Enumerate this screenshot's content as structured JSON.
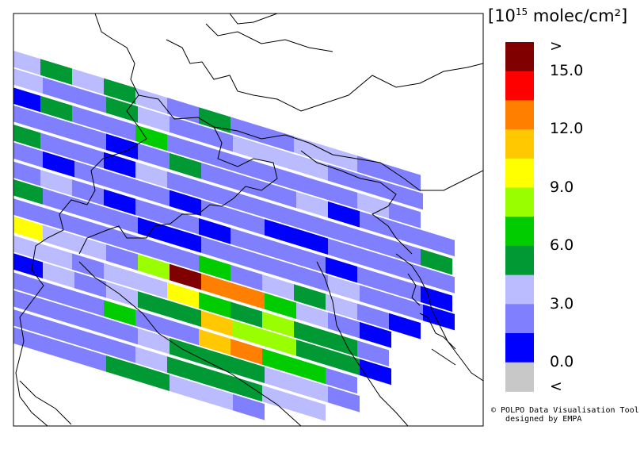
{
  "legend": {
    "unit_prefix": "[10",
    "unit_exp": "15",
    "unit_suffix": " molec/cm²]",
    "labels": [
      ">",
      "15.0",
      "12.0",
      "9.0",
      "6.0",
      "3.0",
      "0.0",
      "<"
    ],
    "bins": [
      {
        "color": "#800000",
        "range": "> 16.5"
      },
      {
        "color": "#ff0000",
        "range": "15.0–16.5"
      },
      {
        "color": "#ff8000",
        "range": "13.5–15.0"
      },
      {
        "color": "#ffc800",
        "range": "12.0–13.5"
      },
      {
        "color": "#ffff00",
        "range": "10.5–12.0"
      },
      {
        "color": "#99ff00",
        "range": "9.0–10.5"
      },
      {
        "color": "#00cc00",
        "range": "7.5–9.0"
      },
      {
        "color": "#009933",
        "range": "6.0–7.5"
      },
      {
        "color": "#bbbbff",
        "range": "4.5–6.0"
      },
      {
        "color": "#8080ff",
        "range": "3.0–4.5"
      },
      {
        "color": "#0000ff",
        "range": "1.5–3.0"
      },
      {
        "color": "#c8c8c8",
        "range": "< 1.5"
      }
    ]
  },
  "credit": {
    "line1": "© POLPO Data Visualisation Tool",
    "line2": "   designed by EMPA"
  },
  "palette": [
    "#0000ff",
    "#8080ff",
    "#bbbbff",
    "#009933",
    "#00cc00",
    "#99ff00",
    "#ffff00",
    "#ffc800",
    "#ff8000",
    "#ff0000",
    "#800000"
  ],
  "swath_rows": [
    [
      2,
      3,
      2,
      3,
      2,
      1,
      3,
      1,
      1,
      2,
      2,
      1,
      1
    ],
    [
      2,
      1,
      1,
      3,
      2,
      1,
      1,
      2,
      2,
      2,
      1,
      1,
      1
    ],
    [
      0,
      3,
      1,
      1,
      4,
      1,
      1,
      1,
      1,
      1,
      1,
      2,
      1
    ],
    [
      1,
      1,
      1,
      0,
      1,
      3,
      1,
      1,
      1,
      2,
      0,
      1,
      1,
      1
    ],
    [
      3,
      1,
      1,
      0,
      2,
      1,
      1,
      1,
      1,
      1,
      1,
      1,
      1,
      3
    ],
    [
      1,
      0,
      1,
      1,
      1,
      0,
      1,
      1,
      0,
      0,
      1,
      1,
      1,
      1
    ],
    [
      1,
      2,
      1,
      0,
      1,
      1,
      0,
      1,
      1,
      1,
      0,
      1,
      1,
      0
    ],
    [
      3,
      1,
      1,
      1,
      0,
      0,
      1,
      1,
      1,
      1,
      2,
      1,
      1,
      0
    ],
    [
      1,
      1,
      1,
      1,
      1,
      1,
      4,
      1,
      2,
      3,
      2,
      1,
      0
    ],
    [
      6,
      2,
      2,
      1,
      5,
      10,
      8,
      8,
      4,
      2,
      1,
      0
    ],
    [
      2,
      2,
      1,
      2,
      2,
      6,
      4,
      3,
      5,
      3,
      3,
      1
    ],
    [
      0,
      2,
      1,
      2,
      3,
      3,
      7,
      5,
      5,
      3,
      3,
      0
    ],
    [
      1,
      1,
      1,
      4,
      1,
      1,
      7,
      8,
      4,
      4,
      1
    ],
    [
      1,
      1,
      1,
      1,
      2,
      3,
      3,
      3,
      2,
      2,
      1
    ],
    [
      1,
      1,
      1,
      1,
      2,
      3,
      3,
      3,
      2,
      2
    ],
    [
      1,
      1,
      1,
      3,
      3,
      2,
      2,
      1
    ]
  ]
}
